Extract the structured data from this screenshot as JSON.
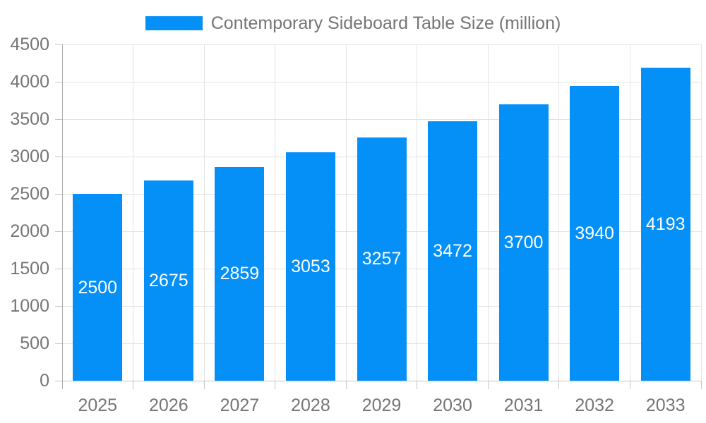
{
  "colors": {
    "bar": "#0590f8",
    "grid": "#e3e3e3",
    "axis_line": "#adadad",
    "baseline": "#c6c6c6",
    "tick": "#c6c6c6",
    "axis_text": "#757575",
    "bar_label_text": "#ffffff",
    "background": "#ffffff"
  },
  "legend": {
    "label": "Contemporary Sideboard Table Size (million)",
    "swatch_color": "#0590f8"
  },
  "chart_data": {
    "type": "bar",
    "title": "Contemporary Sideboard Table Size (million)",
    "categories": [
      "2025",
      "2026",
      "2027",
      "2028",
      "2029",
      "2030",
      "2031",
      "2032",
      "2033"
    ],
    "series": [
      {
        "name": "Contemporary Sideboard Table Size (million)",
        "values": [
          2500,
          2675,
          2859,
          3053,
          3257,
          3472,
          3700,
          3940,
          4193
        ]
      }
    ],
    "value_labels_shown_inside_bars": true,
    "xlabel": "",
    "ylabel": "",
    "ylim": [
      0,
      4500
    ],
    "ytick_step": 500,
    "yticks": [
      0,
      500,
      1000,
      1500,
      2000,
      2500,
      3000,
      3500,
      4000,
      4500
    ],
    "grid": true,
    "legend_position": "top-center"
  }
}
